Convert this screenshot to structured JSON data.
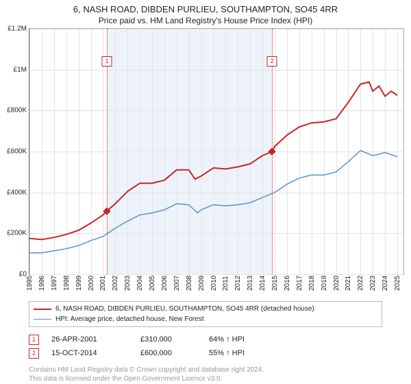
{
  "title": "6, NASH ROAD, DIBDEN PURLIEU, SOUTHAMPTON, SO45 4RR",
  "subtitle": "Price paid vs. HM Land Registry's House Price Index (HPI)",
  "chart": {
    "type": "line",
    "background_color": "#ffffff",
    "shade_color": "#edf3fa",
    "grid_color": "#e3e3e3",
    "axis_color": "#666666",
    "label_fontsize": 10,
    "title_fontsize": 13,
    "x_years": [
      1995,
      1996,
      1997,
      1998,
      1999,
      2000,
      2001,
      2002,
      2003,
      2004,
      2005,
      2006,
      2007,
      2008,
      2009,
      2010,
      2011,
      2012,
      2013,
      2014,
      2015,
      2016,
      2017,
      2018,
      2019,
      2020,
      2021,
      2022,
      2023,
      2024,
      2025
    ],
    "xlim": [
      1995,
      2025.5
    ],
    "ylim": [
      0,
      1200000
    ],
    "ytick_step": 200000,
    "yticks": [
      {
        "v": 0,
        "label": "£0"
      },
      {
        "v": 200000,
        "label": "£200K"
      },
      {
        "v": 400000,
        "label": "£400K"
      },
      {
        "v": 600000,
        "label": "£600K"
      },
      {
        "v": 800000,
        "label": "£800K"
      },
      {
        "v": 1000000,
        "label": "£1M"
      },
      {
        "v": 1200000,
        "label": "£1.2M"
      }
    ],
    "shade_ranges": [
      [
        2001.32,
        2014.79
      ]
    ],
    "series": [
      {
        "name": "price_paid",
        "color": "#cc2222",
        "line_width": 2,
        "data": [
          [
            1995,
            175000
          ],
          [
            1996,
            170000
          ],
          [
            1997,
            180000
          ],
          [
            1998,
            195000
          ],
          [
            1999,
            215000
          ],
          [
            2000,
            250000
          ],
          [
            2001,
            290000
          ],
          [
            2001.32,
            310000
          ],
          [
            2002,
            345000
          ],
          [
            2003,
            405000
          ],
          [
            2004,
            445000
          ],
          [
            2005,
            445000
          ],
          [
            2006,
            460000
          ],
          [
            2007,
            510000
          ],
          [
            2008,
            510000
          ],
          [
            2008.5,
            465000
          ],
          [
            2009,
            480000
          ],
          [
            2010,
            520000
          ],
          [
            2011,
            515000
          ],
          [
            2012,
            525000
          ],
          [
            2013,
            540000
          ],
          [
            2014,
            580000
          ],
          [
            2014.79,
            600000
          ],
          [
            2015,
            625000
          ],
          [
            2016,
            680000
          ],
          [
            2017,
            720000
          ],
          [
            2018,
            740000
          ],
          [
            2019,
            745000
          ],
          [
            2020,
            760000
          ],
          [
            2021,
            840000
          ],
          [
            2022,
            930000
          ],
          [
            2022.7,
            940000
          ],
          [
            2023,
            895000
          ],
          [
            2023.5,
            920000
          ],
          [
            2024,
            870000
          ],
          [
            2024.5,
            895000
          ],
          [
            2025,
            875000
          ]
        ]
      },
      {
        "name": "hpi",
        "color": "#5a8fd6",
        "line_width": 1.5,
        "data": [
          [
            1995,
            105000
          ],
          [
            1996,
            105000
          ],
          [
            1997,
            115000
          ],
          [
            1998,
            125000
          ],
          [
            1999,
            140000
          ],
          [
            2000,
            165000
          ],
          [
            2001,
            185000
          ],
          [
            2002,
            225000
          ],
          [
            2003,
            260000
          ],
          [
            2004,
            290000
          ],
          [
            2005,
            300000
          ],
          [
            2006,
            315000
          ],
          [
            2007,
            345000
          ],
          [
            2008,
            340000
          ],
          [
            2008.7,
            300000
          ],
          [
            2009,
            315000
          ],
          [
            2010,
            340000
          ],
          [
            2011,
            335000
          ],
          [
            2012,
            340000
          ],
          [
            2013,
            350000
          ],
          [
            2014,
            375000
          ],
          [
            2015,
            400000
          ],
          [
            2016,
            440000
          ],
          [
            2017,
            470000
          ],
          [
            2018,
            485000
          ],
          [
            2019,
            485000
          ],
          [
            2020,
            500000
          ],
          [
            2021,
            550000
          ],
          [
            2022,
            605000
          ],
          [
            2023,
            580000
          ],
          [
            2024,
            595000
          ],
          [
            2025,
            575000
          ]
        ]
      }
    ],
    "markers": [
      {
        "n": "1",
        "x": 2001.32,
        "y": 310000,
        "box_top": 40
      },
      {
        "n": "2",
        "x": 2014.79,
        "y": 600000,
        "box_top": 40
      }
    ]
  },
  "legend": {
    "items": [
      {
        "color": "#cc2222",
        "width": 2,
        "label": "6, NASH ROAD, DIBDEN PURLIEU, SOUTHAMPTON, SO45 4RR (detached house)"
      },
      {
        "color": "#5a8fd6",
        "width": 1.5,
        "label": "HPI: Average price, detached house, New Forest"
      }
    ]
  },
  "sales": [
    {
      "n": "1",
      "date": "26-APR-2001",
      "price": "£310,000",
      "hpi": "64% ↑ HPI"
    },
    {
      "n": "2",
      "date": "15-OCT-2014",
      "price": "£600,000",
      "hpi": "55% ↑ HPI"
    }
  ],
  "footer": {
    "line1": "Contains HM Land Registry data © Crown copyright and database right 2024.",
    "line2": "This data is licensed under the Open Government Licence v3.0."
  }
}
